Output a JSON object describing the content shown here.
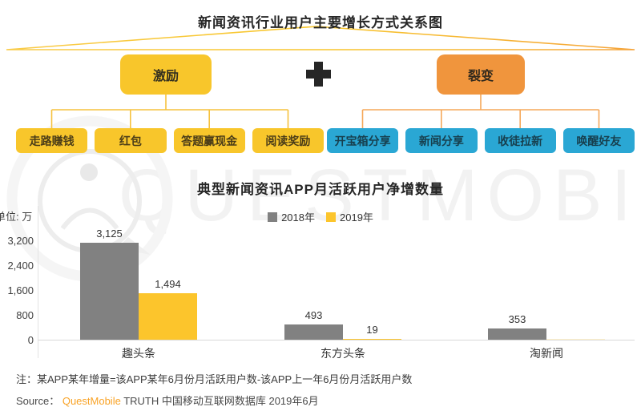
{
  "diagram": {
    "title": "新闻资讯行业用户主要增长方式关系图",
    "plus_symbol": "+",
    "groups": [
      {
        "label": "激励",
        "box_color": "#F8C62B",
        "child_color": "#F8C62B",
        "child_text_color": "#4a3c18",
        "children": [
          "走路赚钱",
          "红包",
          "答题赢现金",
          "阅读奖励"
        ]
      },
      {
        "label": "裂变",
        "box_color": "#F0953D",
        "child_color": "#2AA7D4",
        "child_text_color": "#173f4e",
        "children": [
          "开宝箱分享",
          "新闻分享",
          "收徒拉新",
          "唤醒好友"
        ]
      }
    ],
    "connector_colors": {
      "left": "#F6C23E",
      "right": "#F5A85A"
    }
  },
  "chart_data": {
    "type": "bar",
    "title": "典型新闻资讯APP月活跃用户净增数量",
    "unit_label": "单位: 万",
    "categories": [
      "趣头条",
      "东方头条",
      "淘新闻"
    ],
    "series": [
      {
        "name": "2018年",
        "color": "#818181",
        "values": [
          3125,
          493,
          353
        ],
        "labels": [
          "3,125",
          "493",
          "353"
        ]
      },
      {
        "name": "2019年",
        "color": "#FCC52C",
        "values": [
          1494,
          19,
          0
        ],
        "labels": [
          "1,494",
          "19",
          ""
        ]
      }
    ],
    "ylim": [
      0,
      3200
    ],
    "ytick_values": [
      3200,
      2400,
      1600,
      800,
      0
    ],
    "ytick_labels": [
      "3,200",
      "2,400",
      "1,600",
      "800",
      "0"
    ],
    "legend_position": "top",
    "grid": "off"
  },
  "watermark": {
    "text": "QUESTMOBILE"
  },
  "footer": {
    "footnote": "注：某APP某年增量=该APP某年6月份月活跃用户数-该APP上一年6月份月活跃用户数",
    "source_prefix": "Source：",
    "source_brand": "QuestMobile",
    "source_rest": " TRUTH 中国移动互联网数据库 2019年6月"
  }
}
